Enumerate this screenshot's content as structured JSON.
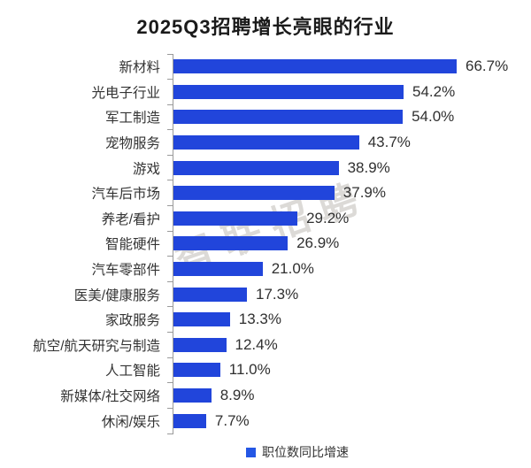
{
  "title": "2025Q3招聘增长亮眼的行业",
  "watermark": "智联招聘",
  "legend": {
    "label": "职位数同比增速"
  },
  "colors": {
    "bar": "#2145db",
    "legend_swatch": "#2457e5",
    "axis": "#9a9a9a",
    "title": "#1a1a1a",
    "category_label": "#333333",
    "value_label": "#303030",
    "watermark": "#bab5b0"
  },
  "chart_data": {
    "type": "bar",
    "orientation": "horizontal",
    "title": "2025Q3招聘增长亮眼的行业",
    "series_name": "职位数同比增速",
    "categories": [
      "新材料",
      "光电子行业",
      "军工制造",
      "宠物服务",
      "游戏",
      "汽车后市场",
      "养老/看护",
      "智能硬件",
      "汽车零部件",
      "医美/健康服务",
      "家政服务",
      "航空/航天研究与制造",
      "人工智能",
      "新媒体/社交网络",
      "休闲/娱乐"
    ],
    "values": [
      66.7,
      54.2,
      54.0,
      43.7,
      38.9,
      37.9,
      29.2,
      26.9,
      21.0,
      17.3,
      13.3,
      12.4,
      11.0,
      8.9,
      7.7
    ],
    "value_labels": [
      "66.7%",
      "54.2%",
      "54.0%",
      "43.7%",
      "38.9%",
      "37.9%",
      "29.2%",
      "26.9%",
      "21.0%",
      "17.3%",
      "13.3%",
      "12.4%",
      "11.0%",
      "8.9%",
      "7.7%"
    ],
    "unit": "%",
    "xlim": [
      0,
      70
    ],
    "grid": false,
    "value_labels_shown": true,
    "legend_position": "bottom"
  }
}
